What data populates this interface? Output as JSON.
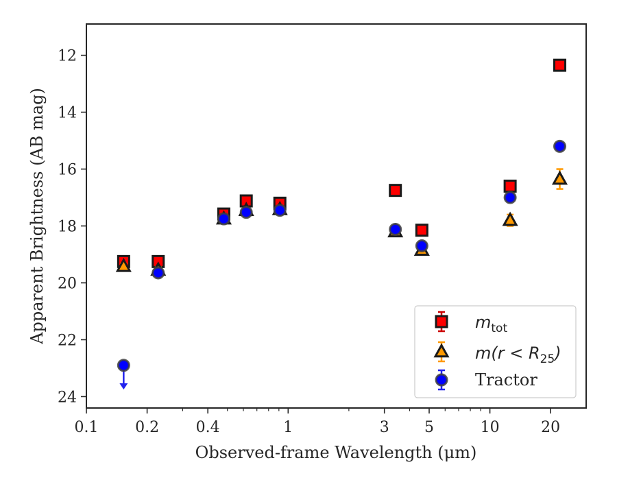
{
  "chart_data": {
    "type": "scatter",
    "xlabel": "Observed-frame Wavelength (μm)",
    "ylabel": "Apparent Brightness (AB mag)",
    "xscale": "log",
    "xlim": [
      0.1,
      30
    ],
    "ylim": [
      24.4,
      10.9
    ],
    "y_inverted": true,
    "x_ticks": [
      {
        "value": 0.1,
        "label": "0.1"
      },
      {
        "value": 0.2,
        "label": "0.2"
      },
      {
        "value": 0.4,
        "label": "0.4"
      },
      {
        "value": 1,
        "label": "1"
      },
      {
        "value": 3,
        "label": "3"
      },
      {
        "value": 5,
        "label": "5"
      },
      {
        "value": 10,
        "label": "10"
      },
      {
        "value": 20,
        "label": "20"
      }
    ],
    "y_ticks": [
      {
        "value": 12,
        "label": "12"
      },
      {
        "value": 14,
        "label": "14"
      },
      {
        "value": 16,
        "label": "16"
      },
      {
        "value": 18,
        "label": "18"
      },
      {
        "value": 20,
        "label": "20"
      },
      {
        "value": 22,
        "label": "22"
      },
      {
        "value": 24,
        "label": "24"
      }
    ],
    "grid": false,
    "legend_position": "bottom-right",
    "series": [
      {
        "name_main": "m",
        "name_sub": "tot",
        "marker": "square",
        "fill": "#ff0000",
        "edge": "#1a1a1a",
        "errcolor": "#cc0000",
        "points": [
          {
            "x": 0.153,
            "y": 19.25,
            "err": 0.1
          },
          {
            "x": 0.227,
            "y": 19.25,
            "err": 0.1
          },
          {
            "x": 0.48,
            "y": 17.58,
            "err": 0.08
          },
          {
            "x": 0.62,
            "y": 17.12,
            "err": 0.08
          },
          {
            "x": 0.91,
            "y": 17.2,
            "err": 0.08
          },
          {
            "x": 3.4,
            "y": 16.75,
            "err": 0.08
          },
          {
            "x": 4.6,
            "y": 18.15,
            "err": 0.08
          },
          {
            "x": 12.6,
            "y": 16.6,
            "err": 0.1
          },
          {
            "x": 22.2,
            "y": 12.35,
            "err": 0.1
          }
        ]
      },
      {
        "name_main": "m(r < R",
        "name_sub": "25",
        "name_close": ")",
        "marker": "triangle",
        "fill": "#ff9900",
        "edge": "#1a1a1a",
        "errcolor": "#ff9900",
        "points": [
          {
            "x": 0.153,
            "y": 19.42,
            "err": 0.1
          },
          {
            "x": 0.227,
            "y": 19.55,
            "err": 0.1
          },
          {
            "x": 0.48,
            "y": 17.75,
            "err": 0.08
          },
          {
            "x": 0.62,
            "y": 17.45,
            "err": 0.08
          },
          {
            "x": 0.91,
            "y": 17.42,
            "err": 0.08
          },
          {
            "x": 3.4,
            "y": 18.2,
            "err": 0.08
          },
          {
            "x": 4.6,
            "y": 18.85,
            "err": 0.1
          },
          {
            "x": 12.6,
            "y": 17.8,
            "err": 0.2
          },
          {
            "x": 22.2,
            "y": 16.35,
            "err": 0.35
          }
        ]
      },
      {
        "name": "Tractor",
        "marker": "circle",
        "fill": "#0000ff",
        "edge": "#404040",
        "errcolor": "#2222ee",
        "points": [
          {
            "x": 0.153,
            "y": 22.9,
            "err": 0.1,
            "upper_limit": true
          },
          {
            "x": 0.227,
            "y": 19.65,
            "err": 0.1
          },
          {
            "x": 0.48,
            "y": 17.75,
            "err": 0.08
          },
          {
            "x": 0.62,
            "y": 17.52,
            "err": 0.08
          },
          {
            "x": 0.91,
            "y": 17.45,
            "err": 0.08
          },
          {
            "x": 3.4,
            "y": 18.12,
            "err": 0.08
          },
          {
            "x": 4.6,
            "y": 18.7,
            "err": 0.1
          },
          {
            "x": 12.6,
            "y": 17.0,
            "err": 0.1
          },
          {
            "x": 22.2,
            "y": 15.2,
            "err": 0.1
          }
        ]
      }
    ]
  }
}
